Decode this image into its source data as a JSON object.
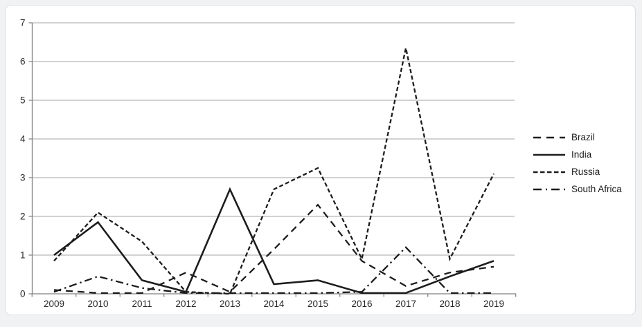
{
  "chart_data": {
    "type": "line",
    "title": "",
    "xlabel": "",
    "ylabel": "",
    "x_labels": [
      "2009",
      "2010",
      "2011",
      "2012",
      "2013",
      "2014",
      "2015",
      "2016",
      "2017",
      "2018",
      "2019"
    ],
    "ylim": [
      0,
      7
    ],
    "y_ticks": [
      0,
      1,
      2,
      3,
      4,
      5,
      6,
      7
    ],
    "grid": "horizontal",
    "legend_position": "right",
    "line_color": "#1c1c1c",
    "grid_color": "#a6a6a6",
    "axis_color": "#7f7f7f",
    "label_color": "#262626",
    "series": [
      {
        "name": "Brazil",
        "style": "long-dash",
        "values": [
          0.1,
          0.02,
          0.02,
          0.55,
          0.05,
          1.15,
          2.3,
          0.85,
          0.2,
          0.55,
          0.7
        ]
      },
      {
        "name": "India",
        "style": "solid",
        "values": [
          1.0,
          1.85,
          0.35,
          0.05,
          2.7,
          0.25,
          0.35,
          0.02,
          0.02,
          0.45,
          0.85
        ]
      },
      {
        "name": "Russia",
        "style": "short-dash",
        "values": [
          0.85,
          2.1,
          1.35,
          0.05,
          0.0,
          2.7,
          3.25,
          0.9,
          6.35,
          0.9,
          3.1
        ]
      },
      {
        "name": "South Africa",
        "style": "dash-dot",
        "values": [
          0.05,
          0.45,
          0.15,
          0.02,
          0.02,
          0.02,
          0.02,
          0.05,
          1.2,
          0.02,
          0.02
        ]
      }
    ]
  }
}
